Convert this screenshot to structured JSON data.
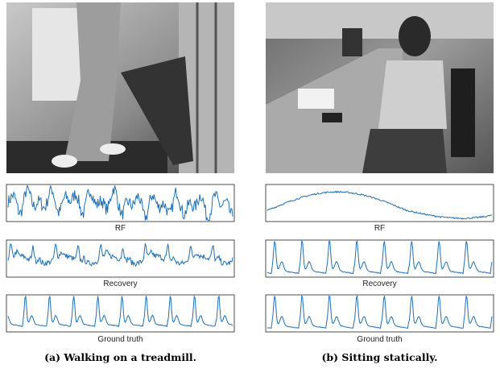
{
  "panels": [
    {
      "plots": [
        {
          "label": "RF"
        },
        {
          "label": "Recovery"
        },
        {
          "label": "Ground truth"
        }
      ],
      "caption": "(a) Walking on a treadmill."
    },
    {
      "plots": [
        {
          "label": "RF"
        },
        {
          "label": "Recovery"
        },
        {
          "label": "Ground truth"
        }
      ],
      "caption": "(b) Sitting statically."
    }
  ]
}
